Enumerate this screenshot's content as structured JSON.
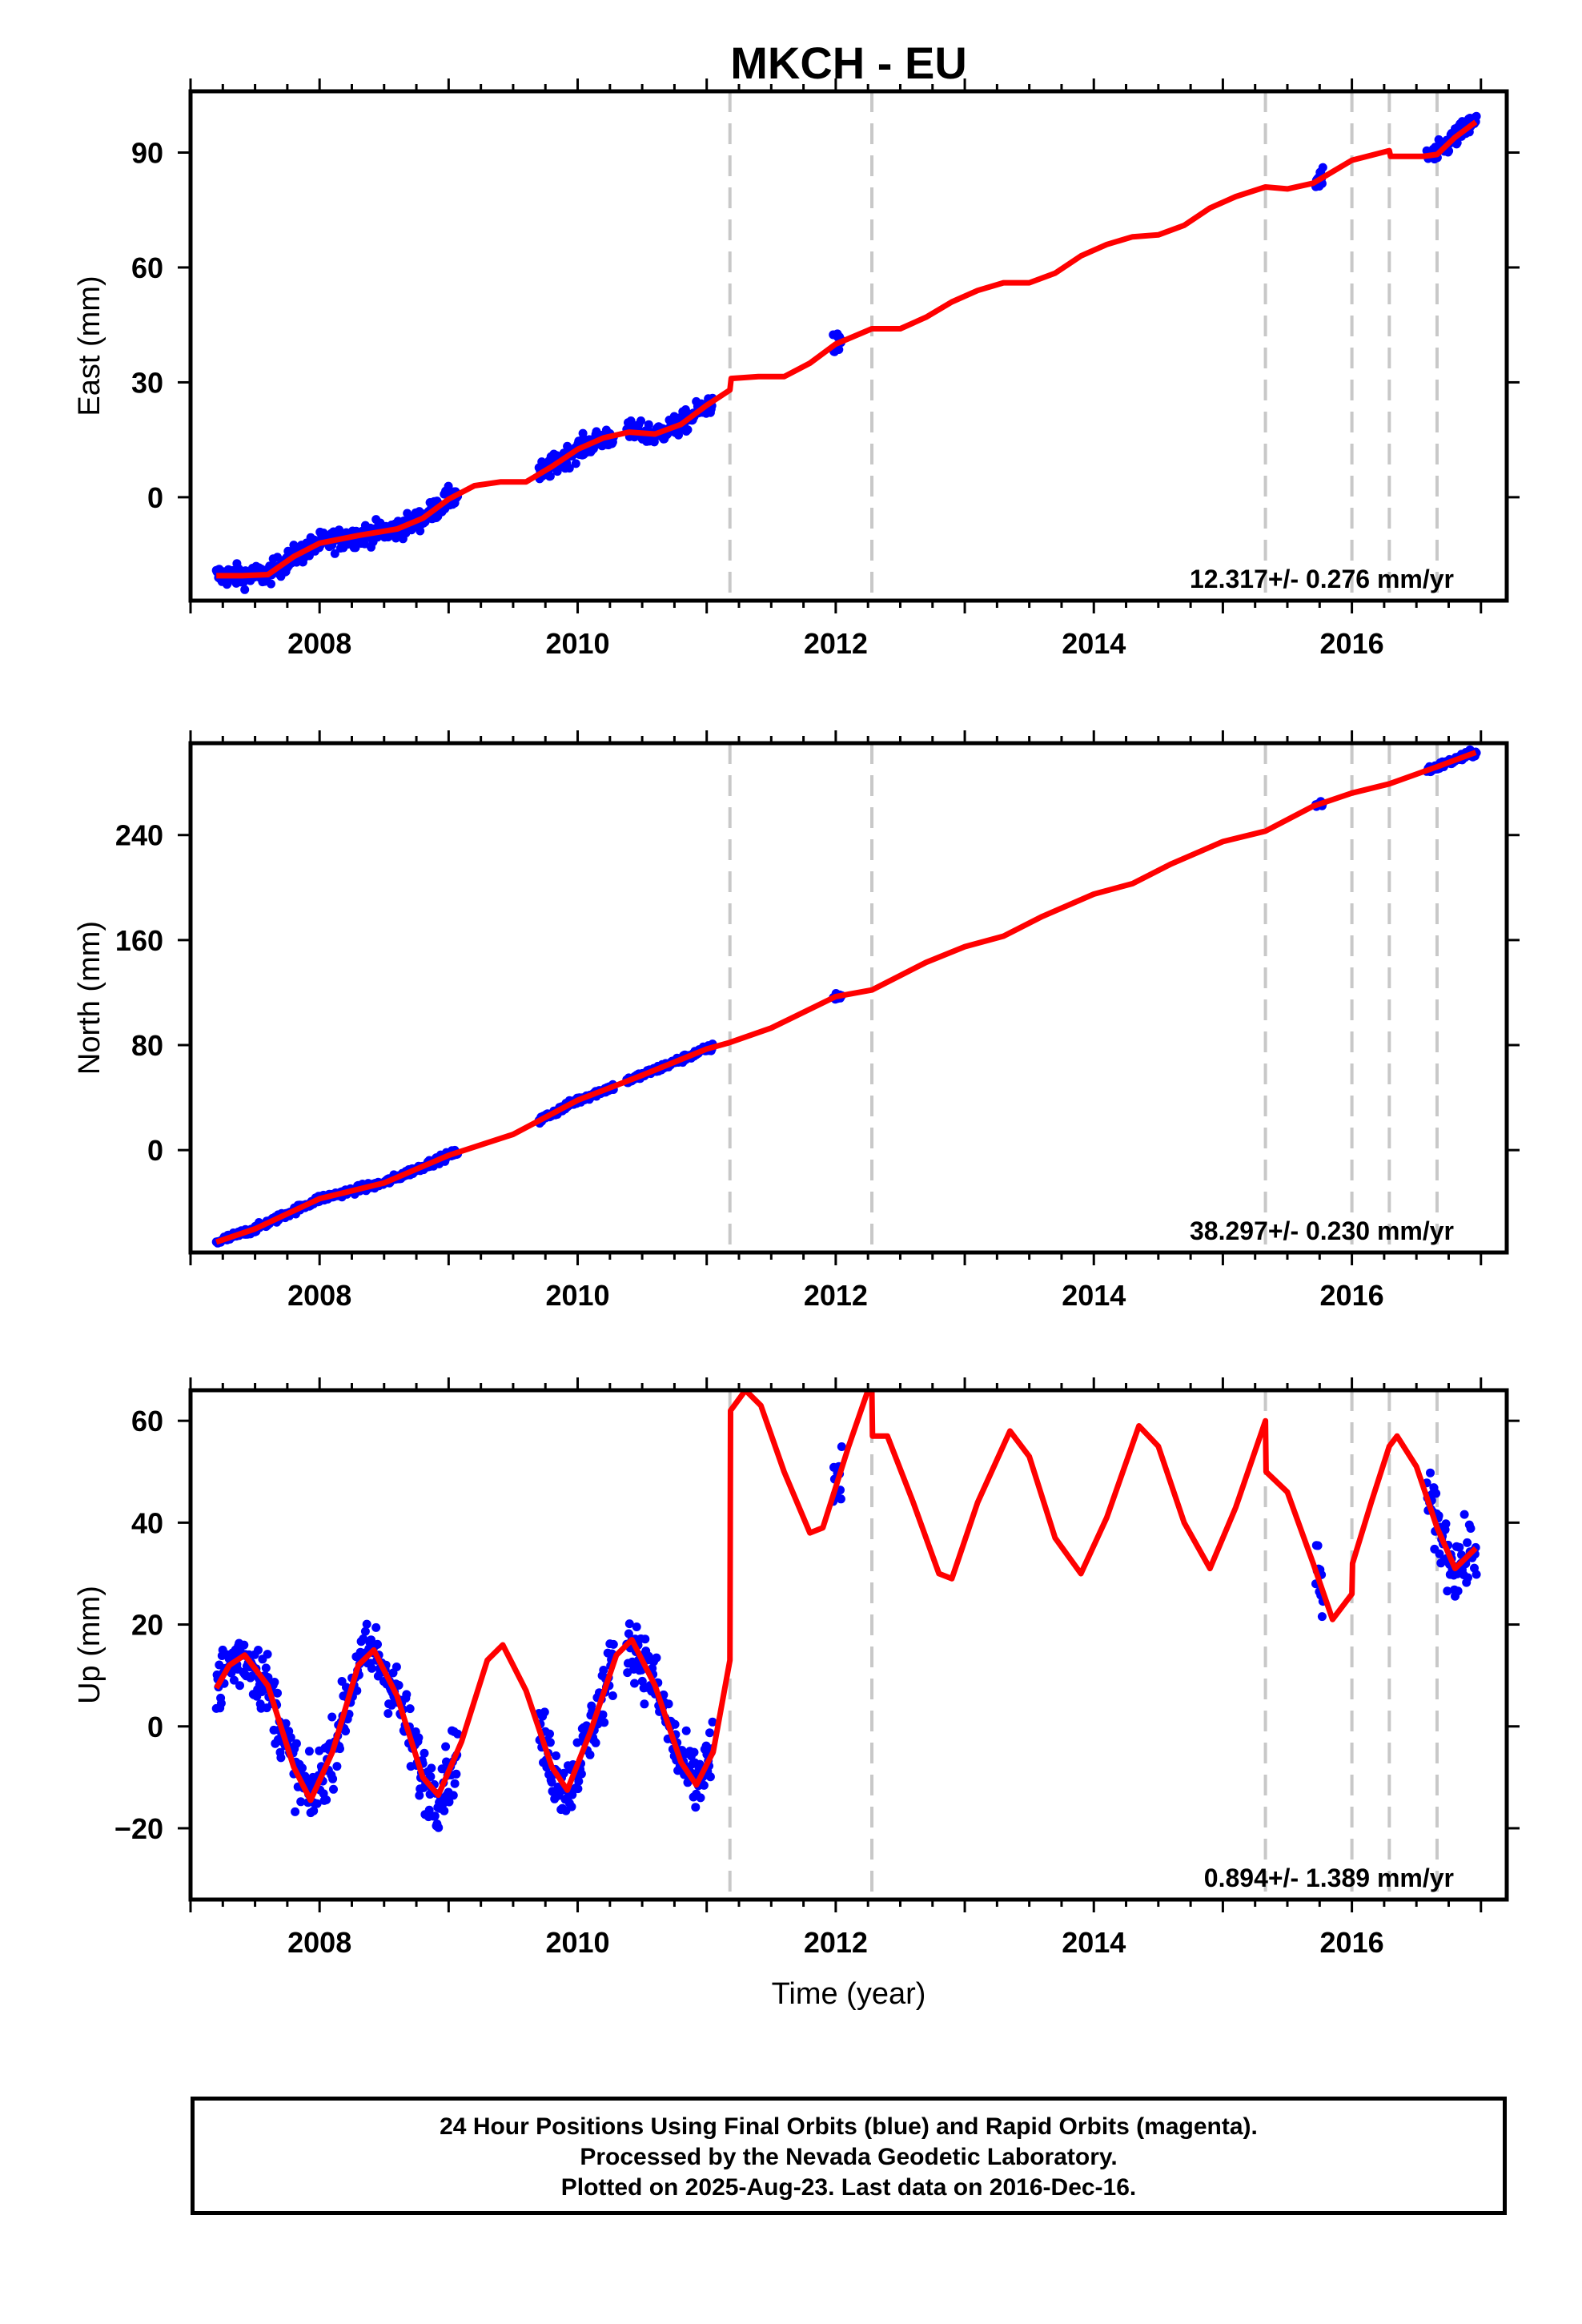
{
  "title": "MKCH - EU",
  "xlabel": "Time (year)",
  "caption": [
    "24 Hour Positions Using Final Orbits (blue) and Rapid Orbits (magenta).",
    "Processed by the Nevada Geodetic Laboratory.",
    "Plotted on 2025-Aug-23. Last data on 2016-Dec-16."
  ],
  "colors": {
    "data": "#0000ff",
    "model": "#ff0000",
    "steps": "#c8c8c8",
    "frame": "#000000"
  },
  "chart_data": [
    {
      "type": "scatter",
      "ylabel": "East (mm)",
      "rate": "12.317+/- 0.276 mm/yr",
      "xlim": [
        2007.0,
        2017.2
      ],
      "ylim": [
        -27,
        106
      ],
      "yticks": [
        0,
        30,
        60,
        90
      ],
      "xticks": [
        2008,
        2010,
        2012,
        2014,
        2016
      ],
      "steps": [
        2011.18,
        2012.28,
        2015.33,
        2016.0,
        2016.29,
        2016.66
      ],
      "model": [
        [
          2007.2,
          -20.5
        ],
        [
          2007.4,
          -20.5
        ],
        [
          2007.6,
          -20.2
        ],
        [
          2007.8,
          -15.5
        ],
        [
          2008.0,
          -12.0
        ],
        [
          2008.3,
          -10.0
        ],
        [
          2008.6,
          -8.3
        ],
        [
          2008.8,
          -5.5
        ],
        [
          2009.0,
          -0.5
        ],
        [
          2009.2,
          3.0
        ],
        [
          2009.4,
          4.0
        ],
        [
          2009.6,
          4.0
        ],
        [
          2009.8,
          8.0
        ],
        [
          2010.0,
          12.5
        ],
        [
          2010.2,
          15.5
        ],
        [
          2010.4,
          17.0
        ],
        [
          2010.6,
          16.5
        ],
        [
          2010.8,
          19.0
        ],
        [
          2011.0,
          24.0
        ],
        [
          2011.18,
          28.0
        ],
        [
          2011.19,
          31.0
        ],
        [
          2011.4,
          31.5
        ],
        [
          2011.6,
          31.5
        ],
        [
          2011.8,
          35.0
        ],
        [
          2012.0,
          40.0
        ],
        [
          2012.28,
          44.0
        ],
        [
          2012.5,
          44.0
        ],
        [
          2012.7,
          47.0
        ],
        [
          2012.9,
          51.0
        ],
        [
          2013.1,
          54.0
        ],
        [
          2013.3,
          56.0
        ],
        [
          2013.5,
          56.0
        ],
        [
          2013.7,
          58.5
        ],
        [
          2013.9,
          63.0
        ],
        [
          2014.1,
          66.0
        ],
        [
          2014.3,
          68.0
        ],
        [
          2014.5,
          68.5
        ],
        [
          2014.7,
          71.0
        ],
        [
          2014.9,
          75.5
        ],
        [
          2015.1,
          78.5
        ],
        [
          2015.33,
          81.0
        ],
        [
          2015.5,
          80.5
        ],
        [
          2015.7,
          82.0
        ],
        [
          2015.9,
          86.0
        ],
        [
          2016.0,
          88.0
        ],
        [
          2016.29,
          90.5
        ],
        [
          2016.3,
          89.0
        ],
        [
          2016.55,
          89.0
        ],
        [
          2016.66,
          89.5
        ],
        [
          2016.8,
          94.0
        ],
        [
          2016.96,
          98.0
        ]
      ],
      "segments": [
        [
          2007.2,
          2009.07
        ],
        [
          2009.7,
          2010.28
        ],
        [
          2010.38,
          2011.05
        ],
        [
          2011.98,
          2012.05
        ],
        [
          2015.72,
          2015.78
        ],
        [
          2016.58,
          2016.97
        ]
      ]
    },
    {
      "type": "scatter",
      "ylabel": "North (mm)",
      "rate": "38.297+/- 0.230 mm/yr",
      "xlim": [
        2007.0,
        2017.2
      ],
      "ylim": [
        -78,
        310
      ],
      "yticks": [
        0,
        80,
        160,
        240
      ],
      "xticks": [
        2008,
        2010,
        2012,
        2014,
        2016
      ],
      "steps": [
        2011.18,
        2012.28,
        2015.33,
        2016.0,
        2016.29,
        2016.66
      ],
      "model": [
        [
          2007.2,
          -70
        ],
        [
          2007.5,
          -60
        ],
        [
          2008.0,
          -37
        ],
        [
          2008.5,
          -25
        ],
        [
          2009.0,
          -4
        ],
        [
          2009.5,
          12
        ],
        [
          2010.0,
          38
        ],
        [
          2010.5,
          57
        ],
        [
          2011.0,
          77
        ],
        [
          2011.18,
          82
        ],
        [
          2011.5,
          93
        ],
        [
          2012.0,
          117
        ],
        [
          2012.28,
          122
        ],
        [
          2012.7,
          143
        ],
        [
          2013.0,
          155
        ],
        [
          2013.3,
          163
        ],
        [
          2013.6,
          178
        ],
        [
          2014.0,
          195
        ],
        [
          2014.3,
          203
        ],
        [
          2014.6,
          218
        ],
        [
          2015.0,
          235
        ],
        [
          2015.33,
          243
        ],
        [
          2015.7,
          262
        ],
        [
          2016.0,
          272
        ],
        [
          2016.29,
          279
        ],
        [
          2016.66,
          292
        ],
        [
          2016.96,
          303
        ]
      ],
      "segments": [
        [
          2007.2,
          2009.07
        ],
        [
          2009.7,
          2010.28
        ],
        [
          2010.38,
          2011.05
        ],
        [
          2011.98,
          2012.05
        ],
        [
          2015.72,
          2015.78
        ],
        [
          2016.58,
          2016.97
        ]
      ]
    },
    {
      "type": "scatter",
      "ylabel": "Up (mm)",
      "rate": "0.894+/- 1.389 mm/yr",
      "xlim": [
        2007.0,
        2017.2
      ],
      "ylim": [
        -34,
        66
      ],
      "yticks": [
        -20,
        0,
        20,
        40,
        60
      ],
      "xticks": [
        2008,
        2010,
        2012,
        2014,
        2016
      ],
      "steps": [
        2011.18,
        2012.28,
        2015.33,
        2016.0,
        2016.29,
        2016.66
      ],
      "model": [
        [
          2007.2,
          7.5
        ],
        [
          2007.3,
          12
        ],
        [
          2007.42,
          14
        ],
        [
          2007.6,
          8
        ],
        [
          2007.8,
          -8
        ],
        [
          2007.93,
          -14.5
        ],
        [
          2008.1,
          -5
        ],
        [
          2008.3,
          12
        ],
        [
          2008.42,
          15
        ],
        [
          2008.6,
          6
        ],
        [
          2008.8,
          -10
        ],
        [
          2008.92,
          -13.5
        ],
        [
          2009.1,
          -3
        ],
        [
          2009.3,
          13
        ],
        [
          2009.42,
          16
        ],
        [
          2009.6,
          7
        ],
        [
          2009.8,
          -8
        ],
        [
          2009.92,
          -12.5
        ],
        [
          2010.1,
          -1
        ],
        [
          2010.3,
          14
        ],
        [
          2010.42,
          17
        ],
        [
          2010.6,
          8
        ],
        [
          2010.8,
          -7
        ],
        [
          2010.92,
          -11.5
        ],
        [
          2011.05,
          -5
        ],
        [
          2011.18,
          13
        ],
        [
          2011.185,
          62
        ],
        [
          2011.3,
          66
        ],
        [
          2011.42,
          63
        ],
        [
          2011.6,
          50
        ],
        [
          2011.8,
          38
        ],
        [
          2011.9,
          39
        ],
        [
          2012.1,
          55
        ],
        [
          2012.25,
          66
        ],
        [
          2012.28,
          66
        ],
        [
          2012.285,
          57
        ],
        [
          2012.4,
          57
        ],
        [
          2012.6,
          44
        ],
        [
          2012.8,
          30
        ],
        [
          2012.9,
          29
        ],
        [
          2013.1,
          44
        ],
        [
          2013.35,
          58
        ],
        [
          2013.5,
          53
        ],
        [
          2013.7,
          37
        ],
        [
          2013.9,
          30
        ],
        [
          2014.1,
          41
        ],
        [
          2014.35,
          59
        ],
        [
          2014.5,
          55
        ],
        [
          2014.7,
          40
        ],
        [
          2014.9,
          31
        ],
        [
          2015.1,
          43
        ],
        [
          2015.33,
          60
        ],
        [
          2015.335,
          50
        ],
        [
          2015.5,
          46
        ],
        [
          2015.7,
          32
        ],
        [
          2015.85,
          21
        ],
        [
          2016.0,
          26
        ],
        [
          2016.005,
          32
        ],
        [
          2016.15,
          44
        ],
        [
          2016.29,
          55
        ],
        [
          2016.35,
          57
        ],
        [
          2016.5,
          51
        ],
        [
          2016.66,
          39
        ],
        [
          2016.8,
          31
        ],
        [
          2016.96,
          35
        ]
      ],
      "segments": [
        [
          2007.2,
          2009.07
        ],
        [
          2009.7,
          2010.28
        ],
        [
          2010.38,
          2011.05
        ],
        [
          2011.98,
          2012.05
        ],
        [
          2015.72,
          2015.78
        ],
        [
          2016.58,
          2016.97
        ]
      ]
    }
  ]
}
